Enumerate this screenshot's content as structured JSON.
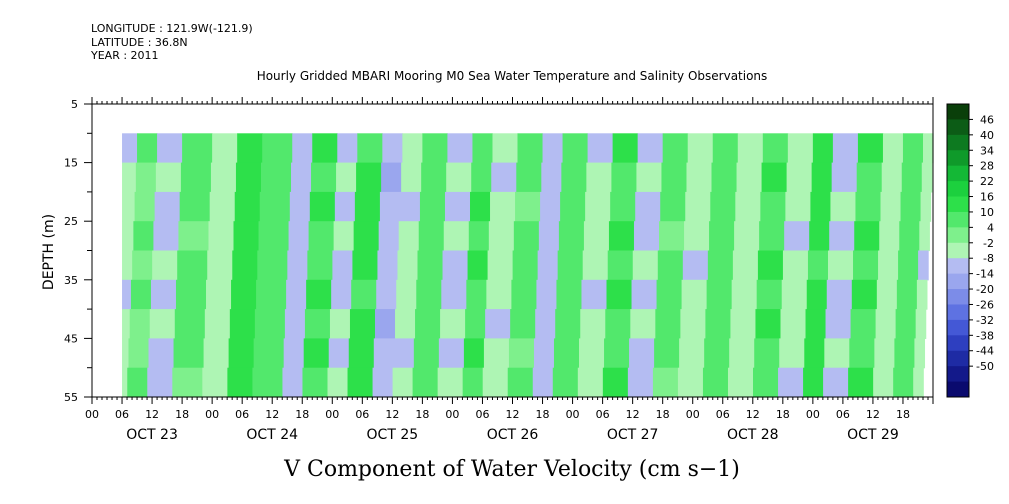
{
  "header": {
    "longitude": "LONGITUDE : 121.9W(-121.9)",
    "latitude": "LATITUDE : 36.8N",
    "year": "YEAR : 2011"
  },
  "chart_data": {
    "type": "heatmap",
    "title": "Hourly Gridded MBARI Mooring M0 Sea Water Temperature and Salinity Observations",
    "xlabel": "V Component of Water Velocity (cm s−1)",
    "ylabel": "DEPTH (m)",
    "ylim": [
      5,
      55
    ],
    "y_inverted": true,
    "y_ticks": [
      "5",
      "15",
      "25",
      "35",
      "45",
      "55"
    ],
    "data_depth_range": [
      10,
      55
    ],
    "x_hour_range": [
      0,
      168
    ],
    "data_start_hour": 6,
    "hour_ticks": [
      "00",
      "06",
      "12",
      "18",
      "00",
      "06",
      "12",
      "18",
      "00",
      "06",
      "12",
      "18",
      "00",
      "06",
      "12",
      "18",
      "00",
      "06",
      "12",
      "18",
      "00",
      "06",
      "12",
      "18",
      "00",
      "06",
      "12",
      "18"
    ],
    "date_labels": [
      "OCT 23",
      "OCT 24",
      "OCT 25",
      "OCT 26",
      "OCT 27",
      "OCT 28",
      "OCT 29"
    ],
    "colorbar": {
      "labels": [
        "46",
        "40",
        "34",
        "28",
        "22",
        "16",
        "10",
        "4",
        "-2",
        "-8",
        "-14",
        "-20",
        "-26",
        "-32",
        "-38",
        "-44",
        "-50"
      ],
      "colors": [
        "#0a3f0a",
        "#0c5c16",
        "#0d7a20",
        "#0f9a2a",
        "#14b836",
        "#1cd03e",
        "#2de04a",
        "#52e86c",
        "#7ef08c",
        "#aef5b4",
        "#b4bcf2",
        "#9aa6ee",
        "#7c8ce8",
        "#5e72e2",
        "#4458d6",
        "#2e3fc0",
        "#1e2ba4",
        "#13198a",
        "#0a0a6e"
      ]
    },
    "velocity_bands": [
      {
        "hour": 6,
        "value": -6
      },
      {
        "hour": 9,
        "value": 4
      },
      {
        "hour": 13,
        "value": -8
      },
      {
        "hour": 18,
        "value": 6
      },
      {
        "hour": 24,
        "value": -4
      },
      {
        "hour": 29,
        "value": 14
      },
      {
        "hour": 34,
        "value": 8
      },
      {
        "hour": 40,
        "value": -10
      },
      {
        "hour": 44,
        "value": 10
      },
      {
        "hour": 49,
        "value": -8
      },
      {
        "hour": 53,
        "value": 12
      },
      {
        "hour": 58,
        "value": -12
      },
      {
        "hour": 62,
        "value": -6
      },
      {
        "hour": 66,
        "value": 8
      },
      {
        "hour": 71,
        "value": -8
      },
      {
        "hour": 76,
        "value": 10
      },
      {
        "hour": 80,
        "value": -6
      },
      {
        "hour": 85,
        "value": 6
      },
      {
        "hour": 90,
        "value": -10
      },
      {
        "hour": 94,
        "value": 8
      },
      {
        "hour": 99,
        "value": -6
      },
      {
        "hour": 104,
        "value": 10
      },
      {
        "hour": 109,
        "value": -8
      },
      {
        "hour": 114,
        "value": 6
      },
      {
        "hour": 119,
        "value": -6
      },
      {
        "hour": 124,
        "value": 8
      },
      {
        "hour": 129,
        "value": -4
      },
      {
        "hour": 134,
        "value": 10
      },
      {
        "hour": 139,
        "value": -6
      },
      {
        "hour": 144,
        "value": 12
      },
      {
        "hour": 148,
        "value": -8
      },
      {
        "hour": 153,
        "value": 10
      },
      {
        "hour": 158,
        "value": -4
      },
      {
        "hour": 162,
        "value": 8
      },
      {
        "hour": 166,
        "value": -6
      }
    ]
  }
}
